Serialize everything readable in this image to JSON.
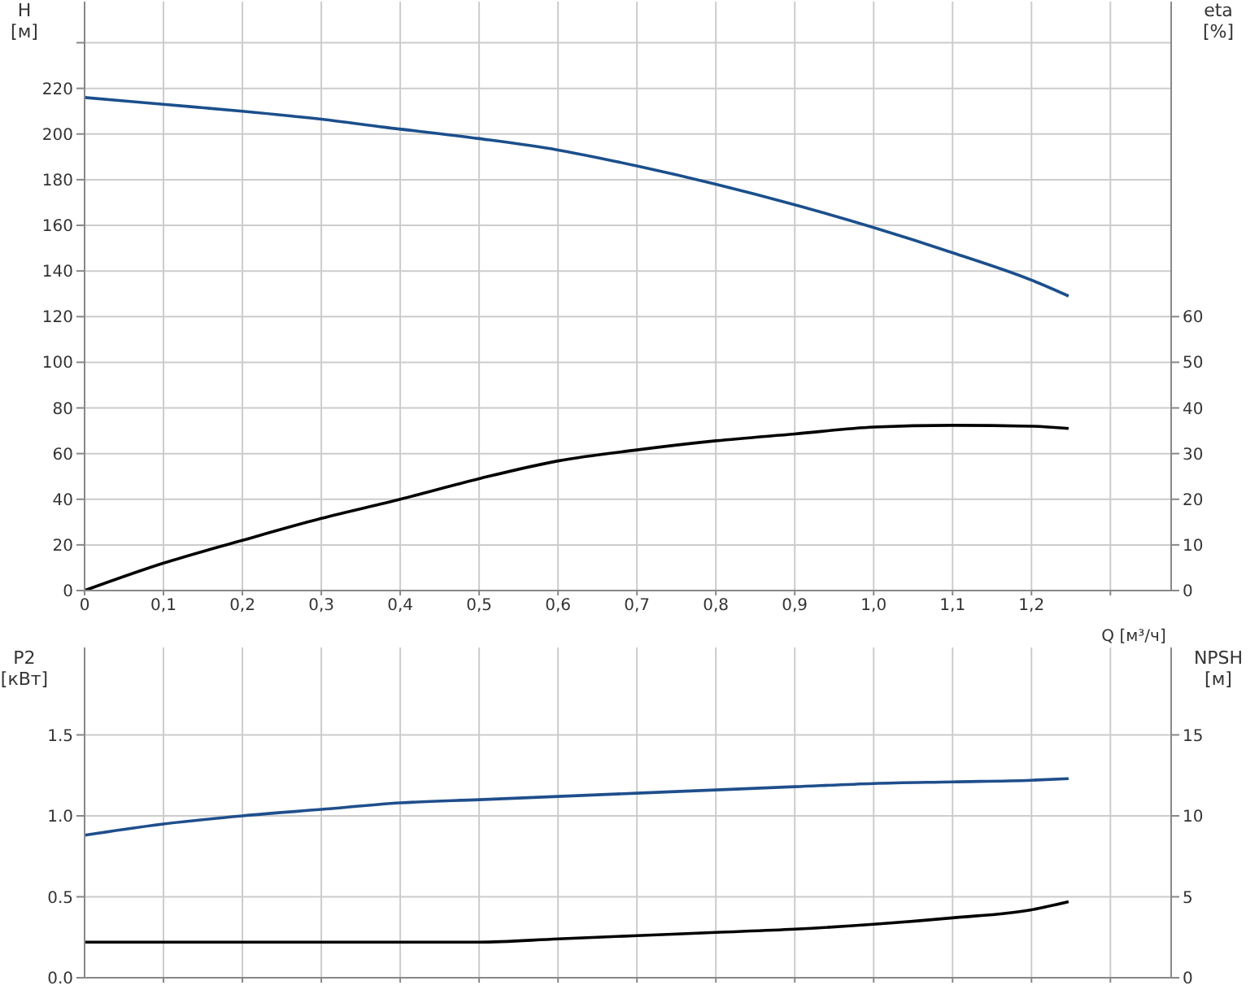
{
  "chart_data": [
    {
      "type": "line",
      "xlabel": "Q [м³/ч]",
      "ylabel": "H\n[м]",
      "y2label": "eta\n[%]",
      "xlim": [
        0,
        1.377
      ],
      "xticks": [
        0,
        {
          "value": 0.1,
          "label": "0,1"
        },
        {
          "value": 0.2,
          "label": "0,2"
        },
        {
          "value": 0.3,
          "label": "0,3"
        },
        {
          "value": 0.4,
          "label": "0,4"
        },
        {
          "value": 0.5,
          "label": "0,5"
        },
        {
          "value": 0.6,
          "label": "0,6"
        },
        {
          "value": 0.7,
          "label": "0,7"
        },
        {
          "value": 0.8,
          "label": "0,8"
        },
        {
          "value": 0.9,
          "label": "0,9"
        },
        {
          "value": 1.0,
          "label": "1,0"
        },
        {
          "value": 1.1,
          "label": "1,1"
        },
        {
          "value": 1.2,
          "label": "1,2"
        },
        {
          "value": 1.3,
          "label": null
        }
      ],
      "ylim": [
        0,
        258
      ],
      "yticks": [
        0,
        20,
        40,
        60,
        80,
        100,
        120,
        140,
        160,
        180,
        200,
        220,
        {
          "value": 240,
          "label": null
        }
      ],
      "y2lim": [
        0,
        129
      ],
      "y2ticks": [
        0,
        10,
        20,
        30,
        40,
        50,
        60
      ],
      "grid": true,
      "marker": "none",
      "line_style": "solid",
      "series": [
        {
          "color": "#1b4f8c",
          "x": [
            0,
            0.1,
            0.2,
            0.3,
            0.38,
            0.5,
            0.6,
            0.7,
            0.8,
            0.9,
            1.0,
            1.1,
            1.2,
            1.247
          ],
          "values": [
            216,
            213,
            210,
            206.5,
            203,
            198,
            193,
            186,
            178,
            169,
            159,
            148,
            136,
            129
          ]
        },
        {
          "color": "#000000",
          "axis": "y2",
          "x": [
            0,
            0.1,
            0.2,
            0.3,
            0.4,
            0.5,
            0.6,
            0.7,
            0.8,
            0.9,
            1.0,
            1.1,
            1.2,
            1.247
          ],
          "values": [
            0,
            6,
            11,
            15.8,
            20,
            24.5,
            28.4,
            30.8,
            32.8,
            34.3,
            35.8,
            36.2,
            36,
            35.5
          ]
        }
      ]
    },
    {
      "type": "line",
      "ylabel": "P2\n[кВт]",
      "y2label": "NPSH\n[м]",
      "tick_labels": "y",
      "xlim": [
        0,
        1.377
      ],
      "xticks": [
        {
          "value": 0.1,
          "label": null
        },
        {
          "value": 0.2,
          "label": null
        },
        {
          "value": 0.3,
          "label": null
        },
        {
          "value": 0.4,
          "label": null
        },
        {
          "value": 0.5,
          "label": null
        },
        {
          "value": 0.6,
          "label": null
        },
        {
          "value": 0.7,
          "label": null
        },
        {
          "value": 0.8,
          "label": null
        },
        {
          "value": 0.9,
          "label": null
        },
        {
          "value": 1.0,
          "label": null
        },
        {
          "value": 1.1,
          "label": null
        },
        {
          "value": 1.2,
          "label": null
        },
        {
          "value": 1.3,
          "label": null
        }
      ],
      "ylim": [
        0,
        2.04
      ],
      "yticks": [
        {
          "value": 0,
          "label": "0.0"
        },
        0.5,
        {
          "value": 1,
          "label": "1.0"
        },
        1.5
      ],
      "y2lim": [
        0,
        20.4
      ],
      "y2ticks": [
        0,
        5,
        10,
        15
      ],
      "grid": true,
      "marker": "none",
      "line_style": "solid",
      "series": [
        {
          "color": "#1f4e8c",
          "x": [
            0,
            0.1,
            0.2,
            0.3,
            0.4,
            0.5,
            0.6,
            0.7,
            0.8,
            0.9,
            1.0,
            1.1,
            1.2,
            1.247
          ],
          "values": [
            0.88,
            0.95,
            1.0,
            1.04,
            1.08,
            1.1,
            1.12,
            1.14,
            1.16,
            1.18,
            1.2,
            1.21,
            1.22,
            1.23
          ]
        },
        {
          "color": "#000000",
          "axis": "y2",
          "x": [
            0,
            0.1,
            0.2,
            0.38,
            0.5,
            0.6,
            0.7,
            0.8,
            0.9,
            1.0,
            1.1,
            1.2,
            1.247
          ],
          "values": [
            2.2,
            2.2,
            2.2,
            2.2,
            2.2,
            2.4,
            2.6,
            2.8,
            3.0,
            3.3,
            3.7,
            4.2,
            4.7
          ]
        }
      ]
    }
  ]
}
